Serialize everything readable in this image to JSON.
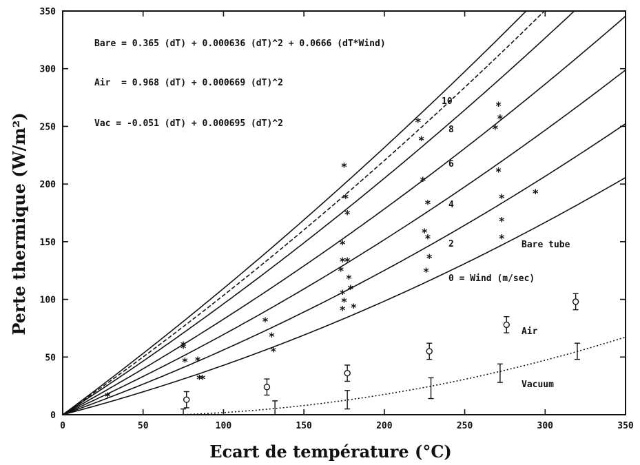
{
  "chart_data": {
    "type": "scatter",
    "xlabel": "Ecart de température (°C)",
    "ylabel": "Perte thermique (W/m²)",
    "xlim": [
      0,
      350
    ],
    "ylim": [
      0,
      350
    ],
    "x_ticks": [
      "0",
      "50",
      "100",
      "150",
      "200",
      "250",
      "300",
      "350"
    ],
    "y_ticks": [
      "0",
      "50",
      "100",
      "150",
      "200",
      "250",
      "300",
      "350"
    ],
    "grid": false,
    "equations": [
      "Bare = 0.365 (dT) + 0.000636 (dT)^2 + 0.0666 (dT*Wind)",
      "Air  = 0.968 (dT) + 0.000669 (dT)^2",
      "Vac = -0.051 (dT) + 0.000695 (dT)^2"
    ],
    "bare_curves": [
      {
        "wind": 0,
        "label": "0 = Wind (m/sec)"
      },
      {
        "wind": 2,
        "label": "2"
      },
      {
        "wind": 4,
        "label": "4"
      },
      {
        "wind": 6,
        "label": "6"
      },
      {
        "wind": 8,
        "label": "8"
      },
      {
        "wind": 10,
        "label": "10"
      }
    ],
    "annotations": {
      "bare_tube": "Bare tube",
      "air": "Air",
      "vacuum": "Vacuum"
    },
    "series": [
      {
        "name": "Bare tube",
        "marker": "*",
        "points": [
          [
            28,
            18
          ],
          [
            75,
            62
          ],
          [
            76,
            48
          ],
          [
            75,
            60
          ],
          [
            84,
            49
          ],
          [
            85,
            33
          ],
          [
            87,
            33
          ],
          [
            126,
            83
          ],
          [
            130,
            70
          ],
          [
            131,
            57
          ],
          [
            174,
            150
          ],
          [
            174,
            135
          ],
          [
            173,
            127
          ],
          [
            174,
            107
          ],
          [
            175,
            100
          ],
          [
            174,
            93
          ],
          [
            175,
            217
          ],
          [
            176,
            190
          ],
          [
            177,
            176
          ],
          [
            177,
            135
          ],
          [
            178,
            120
          ],
          [
            179,
            111
          ],
          [
            181,
            95
          ],
          [
            221,
            256
          ],
          [
            223,
            240
          ],
          [
            224,
            205
          ],
          [
            225,
            160
          ],
          [
            227,
            185
          ],
          [
            227,
            155
          ],
          [
            228,
            138
          ],
          [
            226,
            126
          ],
          [
            269,
            250
          ],
          [
            271,
            270
          ],
          [
            272,
            259
          ],
          [
            271,
            213
          ],
          [
            273,
            190
          ],
          [
            273,
            170
          ],
          [
            273,
            155
          ],
          [
            294,
            194
          ]
        ]
      },
      {
        "name": "Air",
        "marker": "o",
        "points": [
          [
            77,
            13
          ],
          [
            127,
            24
          ],
          [
            177,
            36
          ],
          [
            228,
            55
          ],
          [
            276,
            78
          ],
          [
            319,
            98
          ]
        ],
        "errors": [
          7,
          7,
          7,
          7,
          7,
          7
        ]
      },
      {
        "name": "Vacuum",
        "marker": "bar",
        "points": [
          [
            75,
            2
          ],
          [
            132,
            5
          ],
          [
            177,
            13
          ],
          [
            229,
            23
          ],
          [
            272,
            36
          ],
          [
            320,
            55
          ]
        ],
        "errors": [
          3,
          7,
          8,
          9,
          8,
          7
        ]
      }
    ]
  }
}
